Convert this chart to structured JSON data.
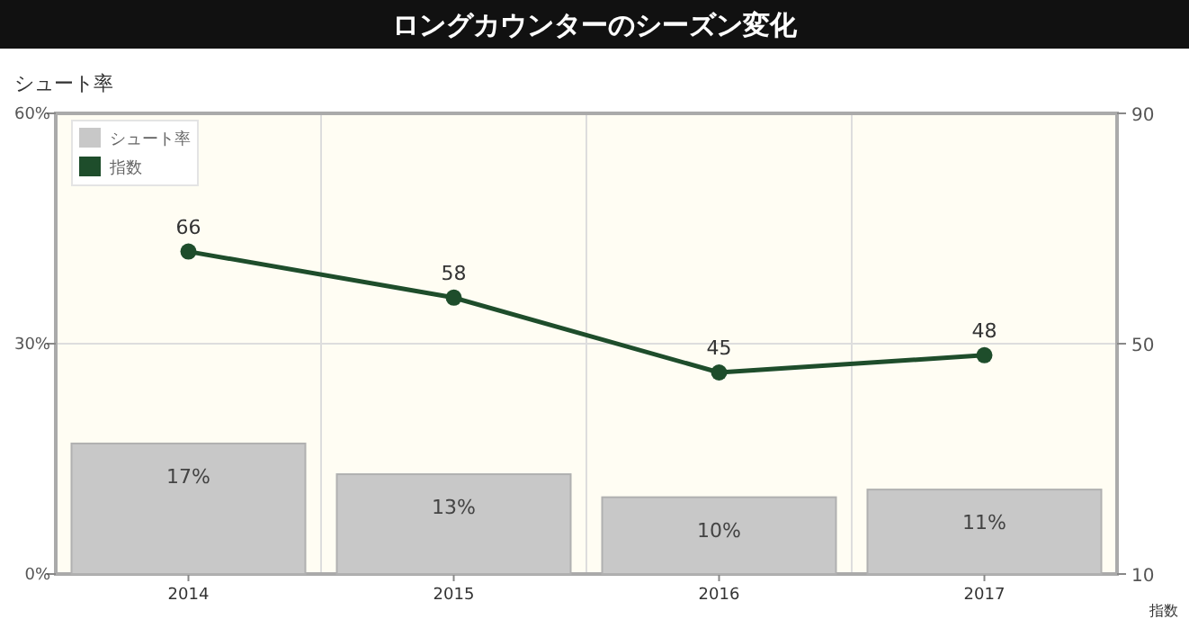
{
  "chart_data": {
    "type": "bar",
    "title": "ロングカウンターのシーズン変化",
    "ylabel": "シュート率",
    "y2label": "指数",
    "categories": [
      "2014",
      "2015",
      "2016",
      "2017"
    ],
    "series": [
      {
        "name": "シュート率",
        "color": "#c8c8c8",
        "values": [
          17,
          13,
          10,
          11
        ],
        "value_labels": [
          "17%",
          "13%",
          "10%",
          "11%"
        ]
      },
      {
        "name": "指数",
        "type": "line",
        "axis": "y2",
        "color": "#1e4d2b",
        "values": [
          66,
          58,
          45,
          48
        ],
        "value_labels": [
          "66",
          "58",
          "45",
          "48"
        ]
      }
    ],
    "ylim": [
      0,
      60
    ],
    "yticks": [
      {
        "value": 0,
        "label": "0%"
      },
      {
        "value": 30,
        "label": "30%"
      },
      {
        "value": 60,
        "label": "60%"
      }
    ],
    "y2lim": [
      10,
      90
    ],
    "y2ticks": [
      10,
      50,
      90
    ],
    "grid": true,
    "legend": "top left",
    "marker": "circle"
  }
}
